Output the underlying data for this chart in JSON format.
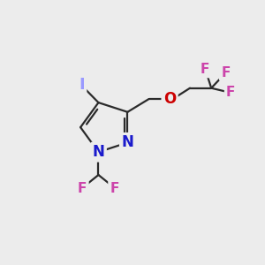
{
  "bg_color": "#ececec",
  "bond_color": "#2a2a2a",
  "bond_width": 1.6,
  "figsize": [
    3.0,
    3.0
  ],
  "dpi": 100,
  "colors": {
    "I": "#9999ff",
    "N": "#1a1acc",
    "O": "#cc0000",
    "F": "#cc44aa",
    "C": "#2a2a2a"
  },
  "fontsizes": {
    "I": 13,
    "N": 12,
    "O": 12,
    "F": 11,
    "C": 11
  }
}
